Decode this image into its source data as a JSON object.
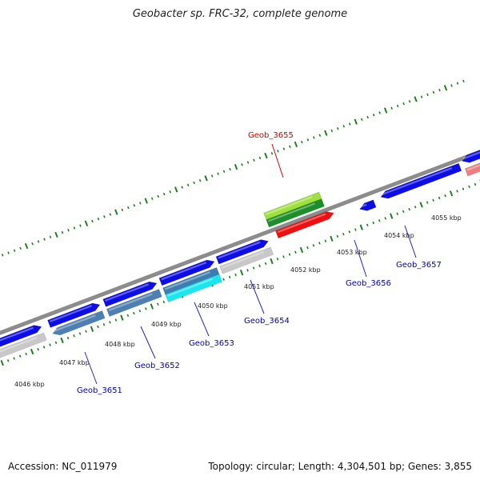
{
  "title": "Geobacter sp. FRC-32, complete genome",
  "footer": {
    "accession": "Accession: NC_011979",
    "summary": "Topology: circular; Length: 4,304,501 bp; Genes: 3,855"
  },
  "colors": {
    "backbone": "#8c8c8c",
    "tick": "#1f7f1f",
    "label_blue": "#0000b8",
    "label_red": "#d00000",
    "leader": "#2222cc",
    "leader_red": "#dd0000"
  },
  "kbp_labels": [
    "4046 kbp",
    "4047 kbp",
    "4048 kbp",
    "4049 kbp",
    "4050 kbp",
    "4051 kbp",
    "4052 kbp",
    "4053 kbp",
    "4054 kbp",
    "4055 kbp"
  ],
  "gene_labels": [
    "Geob_3651",
    "Geob_3652",
    "Geob_3653",
    "Geob_3654",
    "Geob_3655",
    "Geob_3656",
    "Geob_3657"
  ]
}
